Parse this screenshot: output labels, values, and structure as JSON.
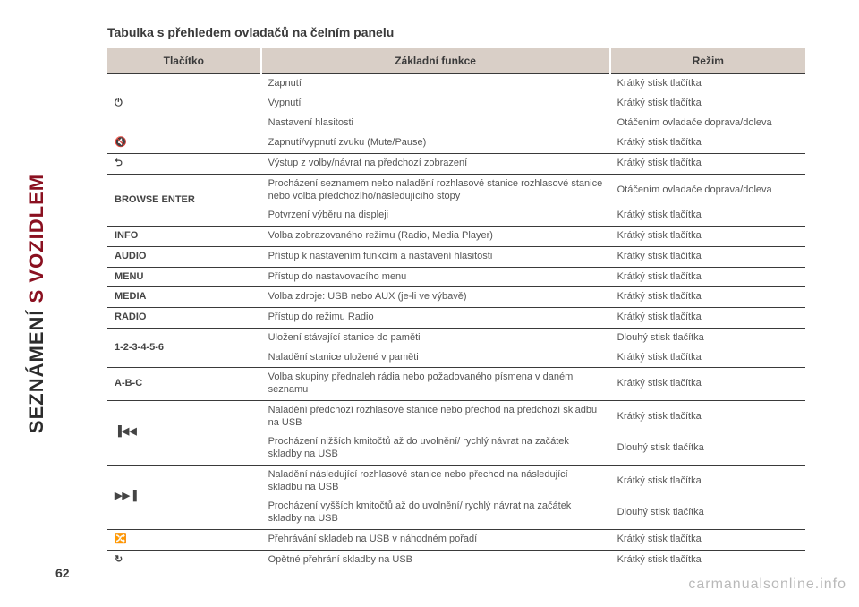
{
  "sidebar": {
    "accent_text": "S VOZIDLEM",
    "dark_text": "SEZNÁMENÍ "
  },
  "page_number": "62",
  "title": "Tabulka s přehledem ovladačů na čelním panelu",
  "columns": {
    "button": "Tlačítko",
    "function": "Základní funkce",
    "mode": "Režim"
  },
  "rows": [
    {
      "group_first": true,
      "btn": "⏻",
      "btn_rowspan": 3,
      "func": "Zapnutí",
      "mode": "Krátký stisk tlačítka"
    },
    {
      "group_first": false,
      "func": "Vypnutí",
      "mode": "Krátký stisk tlačítka"
    },
    {
      "group_first": false,
      "func": "Nastavení hlasitosti",
      "mode": "Otáčením ovladače doprava/doleva"
    },
    {
      "group_first": true,
      "btn": "🔇",
      "func": "Zapnutí/vypnutí zvuku (Mute/Pause)",
      "mode": "Krátký stisk tlačítka"
    },
    {
      "group_first": true,
      "btn": "⮌",
      "func": "Výstup z volby/návrat na předchozí zobrazení",
      "mode": "Krátký stisk tlačítka"
    },
    {
      "group_first": true,
      "btn": "BROWSE ENTER",
      "btn_rowspan": 2,
      "func": "Procházení seznamem nebo naladění rozhlasové stanice rozhlasové stanice nebo volba předchozího/následujícího stopy",
      "mode": "Otáčením ovladače doprava/doleva"
    },
    {
      "group_first": false,
      "func": "Potvrzení výběru na displeji",
      "mode": "Krátký stisk tlačítka"
    },
    {
      "group_first": true,
      "btn": "INFO",
      "func": "Volba zobrazovaného režimu (Radio, Media Player)",
      "mode": "Krátký stisk tlačítka"
    },
    {
      "group_first": true,
      "btn": "AUDIO",
      "func": "Přístup k nastavením funkcím a nastavení hlasitosti",
      "mode": "Krátký stisk tlačítka"
    },
    {
      "group_first": true,
      "btn": "MENU",
      "func": "Přístup do nastavovacího menu",
      "mode": "Krátký stisk tlačítka"
    },
    {
      "group_first": true,
      "btn": "MEDIA",
      "func": "Volba zdroje: USB nebo AUX (je-li ve výbavě)",
      "mode": "Krátký stisk tlačítka"
    },
    {
      "group_first": true,
      "btn": "RADIO",
      "func": "Přístup do režimu Radio",
      "mode": "Krátký stisk tlačítka"
    },
    {
      "group_first": true,
      "btn": "1-2-3-4-5-6",
      "btn_rowspan": 2,
      "func": "Uložení stávající stanice do paměti",
      "mode": "Dlouhý stisk tlačítka"
    },
    {
      "group_first": false,
      "func": "Naladění stanice uložené v paměti",
      "mode": "Krátký stisk tlačítka"
    },
    {
      "group_first": true,
      "btn": "A-B-C",
      "func": "Volba skupiny přednaleh rádia nebo požadovaného písmena v daném seznamu",
      "mode": "Krátký stisk tlačítka"
    },
    {
      "group_first": true,
      "btn": "▐◀◀",
      "btn_rowspan": 2,
      "func": "Naladění předchozí rozhlasové stanice nebo přechod na předchozí skladbu na USB",
      "mode": "Krátký stisk tlačítka"
    },
    {
      "group_first": false,
      "func": "Procházení nižších kmitočtů až do uvolnění/ rychlý návrat na začátek skladby na USB",
      "mode": "Dlouhý stisk tlačítka"
    },
    {
      "group_first": true,
      "btn": "▶▶▐",
      "btn_rowspan": 2,
      "func": "Naladění následující rozhlasové stanice nebo přechod na následující skladbu na USB",
      "mode": "Krátký stisk tlačítka"
    },
    {
      "group_first": false,
      "func": "Procházení vyšších kmitočtů až do uvolnění/ rychlý návrat na začátek skladby na USB",
      "mode": "Dlouhý stisk tlačítka"
    },
    {
      "group_first": true,
      "btn": "�ができ",
      "btn_icon": "shuffle",
      "func": "Přehrávání skladeb na USB v náhodném pořadí",
      "mode": "Krátký stisk tlačítka"
    },
    {
      "group_first": true,
      "btn": "↻",
      "func": "Opětné přehrání skladby na USB",
      "mode": "Krátký stisk tlačítka"
    }
  ],
  "watermark": "carmanualsonline.info",
  "colors": {
    "accent": "#8a1020",
    "header_bg": "#d9cfc7",
    "rule": "#3a3a3a",
    "text": "#4a4a4a"
  }
}
